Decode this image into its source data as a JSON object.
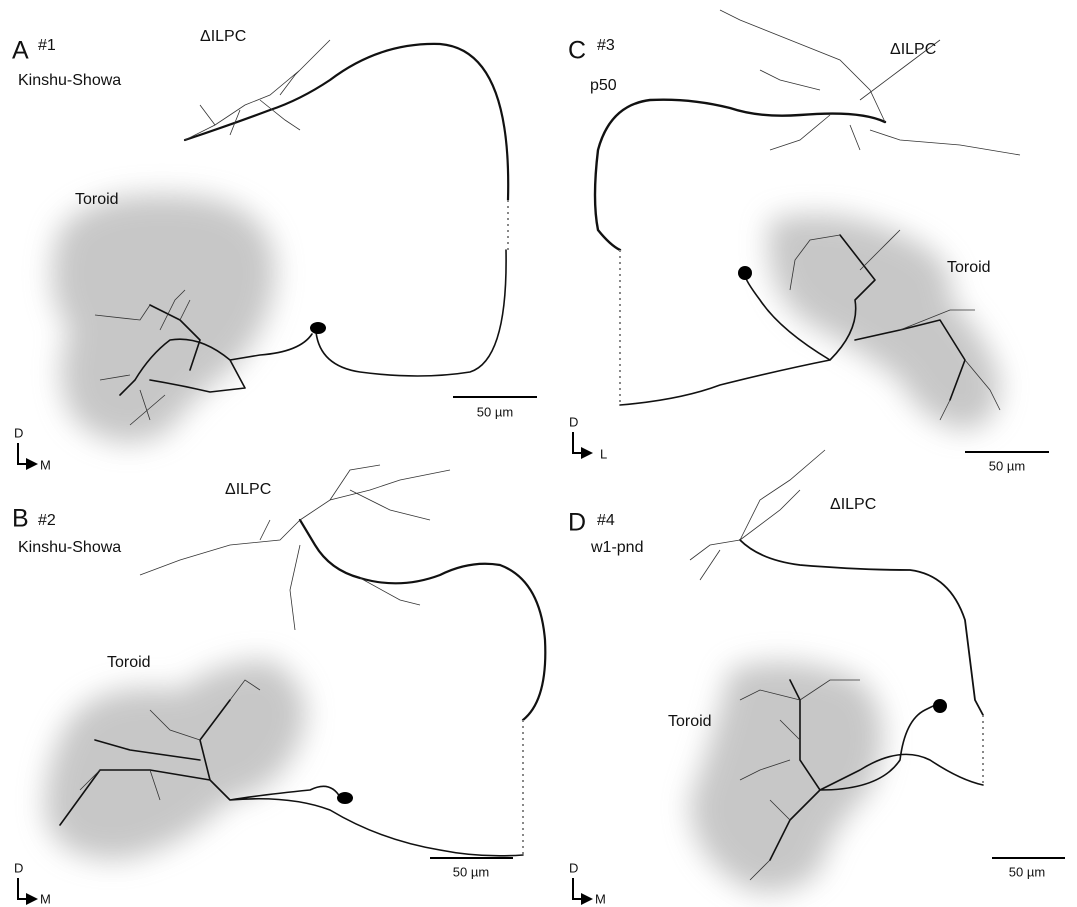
{
  "panels": [
    {
      "letter": "A",
      "id": "#1",
      "strain": "Kinshu-Showa",
      "region": "ΔILPC",
      "toroid": "Toroid",
      "scale": "50 µm",
      "axis_v": "D",
      "axis_h": "M"
    },
    {
      "letter": "B",
      "id": "#2",
      "strain": "Kinshu-Showa",
      "region": "ΔILPC",
      "toroid": "Toroid",
      "scale": "50 µm",
      "axis_v": "D",
      "axis_h": "M"
    },
    {
      "letter": "C",
      "id": "#3",
      "strain": "p50",
      "region": "ΔILPC",
      "toroid": "Toroid",
      "scale": "50 µm",
      "axis_v": "D",
      "axis_h": "L"
    },
    {
      "letter": "D",
      "id": "#4",
      "strain": "w1-pnd",
      "region": "ΔILPC",
      "toroid": "Toroid",
      "scale": "50 µm",
      "axis_v": "D",
      "axis_h": "M"
    }
  ]
}
